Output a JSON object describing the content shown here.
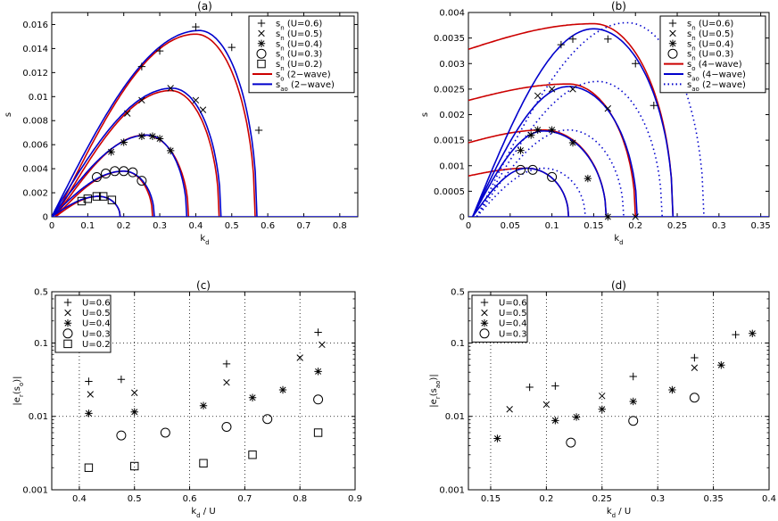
{
  "chart_data": [
    {
      "id": "a",
      "title": "(a)",
      "type": "line",
      "xlabel": "k_d",
      "ylabel": "s",
      "xlim": [
        0,
        0.85
      ],
      "ylim": [
        0,
        0.017
      ],
      "xticks": [
        0,
        0.1,
        0.2,
        0.3,
        0.4,
        0.5,
        0.6,
        0.7,
        0.8
      ],
      "xtick_labels": [
        "0",
        "0.1",
        "0.2",
        "0.3",
        "0.4",
        "0.5",
        "0.6",
        "0.7",
        "0.8"
      ],
      "yticks": [
        0,
        0.002,
        0.004,
        0.006,
        0.008,
        0.01,
        0.012,
        0.014,
        0.016
      ],
      "ytick_labels": [
        "0",
        "0.002",
        "0.004",
        "0.006",
        "0.008",
        "0.01",
        "0.012",
        "0.014",
        "0.016"
      ],
      "grid": false,
      "legend_position": "top-right",
      "legend": [
        {
          "label": "s_n (U=0.6)",
          "marker": "plus"
        },
        {
          "label": "s_n (U=0.5)",
          "marker": "x"
        },
        {
          "label": "s_n (U=0.4)",
          "marker": "star"
        },
        {
          "label": "s_n (U=0.3)",
          "marker": "circle"
        },
        {
          "label": "s_n (U=0.2)",
          "marker": "square"
        },
        {
          "label": "s_o (2−wave)",
          "line": "red"
        },
        {
          "label": "s_ao (2−wave)",
          "line": "blue"
        }
      ],
      "series": [
        {
          "name": "s_o (2−wave)",
          "color": "#cc0000",
          "style": "solid",
          "curves": [
            {
              "x0": 0.01,
              "x1": 0.565,
              "peak_x": 0.4,
              "peak_y": 0.0152
            },
            {
              "x0": 0.01,
              "x1": 0.465,
              "peak_x": 0.33,
              "peak_y": 0.0105
            },
            {
              "x0": 0.01,
              "x1": 0.38,
              "peak_x": 0.26,
              "peak_y": 0.0068
            },
            {
              "x0": 0.01,
              "x1": 0.28,
              "peak_x": 0.2,
              "peak_y": 0.0038
            },
            {
              "x0": 0.01,
              "x1": 0.19,
              "peak_x": 0.13,
              "peak_y": 0.0017
            }
          ]
        },
        {
          "name": "s_ao (2−wave)",
          "color": "#0000cc",
          "style": "solid",
          "curves": [
            {
              "x0": 0,
              "x1": 0.57,
              "peak_x": 0.41,
              "peak_y": 0.0155
            },
            {
              "x0": 0,
              "x1": 0.47,
              "peak_x": 0.335,
              "peak_y": 0.0107
            },
            {
              "x0": 0,
              "x1": 0.375,
              "peak_x": 0.265,
              "peak_y": 0.0068
            },
            {
              "x0": 0,
              "x1": 0.285,
              "peak_x": 0.2,
              "peak_y": 0.0038
            },
            {
              "x0": 0,
              "x1": 0.19,
              "peak_x": 0.13,
              "peak_y": 0.0017
            }
          ]
        }
      ],
      "points": [
        {
          "name": "s_n (U=0.6)",
          "marker": "plus",
          "x": [
            0.25,
            0.3,
            0.4,
            0.5,
            0.575
          ],
          "y": [
            0.0125,
            0.0138,
            0.0158,
            0.0141,
            0.0072
          ]
        },
        {
          "name": "s_n (U=0.5)",
          "marker": "x",
          "x": [
            0.21,
            0.25,
            0.33,
            0.4,
            0.42
          ],
          "y": [
            0.0086,
            0.0097,
            0.0107,
            0.0097,
            0.0089
          ]
        },
        {
          "name": "s_n (U=0.4)",
          "marker": "star",
          "x": [
            0.165,
            0.2,
            0.25,
            0.28,
            0.3,
            0.33
          ],
          "y": [
            0.0054,
            0.0062,
            0.0067,
            0.0067,
            0.0065,
            0.0055
          ]
        },
        {
          "name": "s_n (U=0.3)",
          "marker": "circle",
          "x": [
            0.125,
            0.15,
            0.175,
            0.2,
            0.225,
            0.25
          ],
          "y": [
            0.0033,
            0.0036,
            0.0038,
            0.0038,
            0.0037,
            0.003
          ]
        },
        {
          "name": "s_n (U=0.2)",
          "marker": "square",
          "x": [
            0.083,
            0.1,
            0.125,
            0.143,
            0.167
          ],
          "y": [
            0.0013,
            0.0015,
            0.0017,
            0.0017,
            0.0014
          ]
        }
      ]
    },
    {
      "id": "b",
      "title": "(b)",
      "type": "line",
      "xlabel": "k_d",
      "ylabel": "s",
      "xlim": [
        0,
        0.36
      ],
      "ylim": [
        0,
        0.004
      ],
      "xticks": [
        0,
        0.05,
        0.1,
        0.15,
        0.2,
        0.25,
        0.3,
        0.35
      ],
      "xtick_labels": [
        "0",
        "0.05",
        "0.1",
        "0.15",
        "0.2",
        "0.25",
        "0.3",
        "0.35"
      ],
      "yticks": [
        0,
        0.0005,
        0.001,
        0.0015,
        0.002,
        0.0025,
        0.003,
        0.0035,
        0.004
      ],
      "ytick_labels": [
        "0",
        "0.0005",
        "0.001",
        "0.0015",
        "0.002",
        "0.0025",
        "0.003",
        "0.0035",
        "0.004"
      ],
      "grid": false,
      "legend_position": "top-right",
      "legend": [
        {
          "label": "s_n (U=0.6)",
          "marker": "plus"
        },
        {
          "label": "s_n (U=0.5)",
          "marker": "x"
        },
        {
          "label": "s_n (U=0.4)",
          "marker": "star"
        },
        {
          "label": "s_n (U=0.3)",
          "marker": "circle"
        },
        {
          "label": "s_o (4−wave)",
          "line": "red"
        },
        {
          "label": "s_ao (4−wave)",
          "line": "blue"
        },
        {
          "label": "s_ao (2−wave)",
          "line": "blue-dotted"
        }
      ],
      "series": [
        {
          "name": "s_o (4−wave)",
          "color": "#cc0000",
          "style": "solid",
          "offset_curves": [
            {
              "y0": 0.00328,
              "x1": 0.245,
              "peak_x": 0.15,
              "peak_y": 0.00378
            },
            {
              "y0": 0.00228,
              "x1": 0.2,
              "peak_x": 0.12,
              "peak_y": 0.0026
            },
            {
              "y0": 0.00145,
              "x1": 0.165,
              "peak_x": 0.09,
              "peak_y": 0.0017
            },
            {
              "y0": 0.0008,
              "x1": 0.12,
              "peak_x": 0.07,
              "peak_y": 0.00095
            }
          ]
        },
        {
          "name": "s_ao (4−wave)",
          "color": "#0000cc",
          "style": "solid",
          "curves": [
            {
              "x0": 0.005,
              "x1": 0.245,
              "peak_x": 0.15,
              "peak_y": 0.00368
            },
            {
              "x0": 0.005,
              "x1": 0.202,
              "peak_x": 0.12,
              "peak_y": 0.00255
            },
            {
              "x0": 0.005,
              "x1": 0.165,
              "peak_x": 0.09,
              "peak_y": 0.00168
            },
            {
              "x0": 0.005,
              "x1": 0.12,
              "peak_x": 0.07,
              "peak_y": 0.00095
            }
          ]
        },
        {
          "name": "s_ao (2−wave)",
          "color": "#0000cc",
          "style": "dotted",
          "curves": [
            {
              "x0": 0.01,
              "x1": 0.282,
              "peak_x": 0.19,
              "peak_y": 0.0038
            },
            {
              "x0": 0.01,
              "x1": 0.232,
              "peak_x": 0.155,
              "peak_y": 0.00265
            },
            {
              "x0": 0.01,
              "x1": 0.186,
              "peak_x": 0.12,
              "peak_y": 0.0017
            },
            {
              "x0": 0.01,
              "x1": 0.14,
              "peak_x": 0.09,
              "peak_y": 0.00095
            }
          ]
        }
      ],
      "points": [
        {
          "name": "s_n (U=0.6)",
          "marker": "plus",
          "x": [
            0.111,
            0.125,
            0.167,
            0.2,
            0.222
          ],
          "y": [
            0.00337,
            0.00348,
            0.00348,
            0.003,
            0.00218
          ]
        },
        {
          "name": "s_n (U=0.5)",
          "marker": "x",
          "x": [
            0.083,
            0.1,
            0.125,
            0.167,
            0.2
          ],
          "y": [
            0.00237,
            0.0025,
            0.0025,
            0.00212,
            0.0
          ]
        },
        {
          "name": "s_n (U=0.4)",
          "marker": "star",
          "x": [
            0.0625,
            0.075,
            0.083,
            0.1,
            0.125,
            0.143,
            0.167
          ],
          "y": [
            0.0013,
            0.0016,
            0.0017,
            0.0017,
            0.00145,
            0.00075,
            0.0
          ]
        },
        {
          "name": "s_n (U=0.3)",
          "marker": "circle",
          "x": [
            0.0625,
            0.077,
            0.1
          ],
          "y": [
            0.00092,
            0.00092,
            0.00078
          ]
        }
      ]
    },
    {
      "id": "c",
      "title": "(c)",
      "type": "scatter",
      "xlabel": "k_d / U",
      "ylabel": "|e_r(s_o)|",
      "xlim": [
        0.35,
        0.9
      ],
      "ylim": [
        0.001,
        0.5
      ],
      "yscale": "log",
      "xticks": [
        0.4,
        0.5,
        0.6,
        0.7,
        0.8,
        0.9
      ],
      "xtick_labels": [
        "0.4",
        "0.5",
        "0.6",
        "0.7",
        "0.8",
        "0.9"
      ],
      "yticks": [
        0.001,
        0.01,
        0.1,
        0.5
      ],
      "ytick_labels": [
        "0.001",
        "0.01",
        "0.1",
        "0.5"
      ],
      "grid": true,
      "legend_position": "top-left",
      "legend": [
        {
          "label": "U=0.6",
          "marker": "plus"
        },
        {
          "label": "U=0.5",
          "marker": "x"
        },
        {
          "label": "U=0.4",
          "marker": "star"
        },
        {
          "label": "U=0.3",
          "marker": "circle"
        },
        {
          "label": "U=0.2",
          "marker": "square"
        }
      ],
      "points": [
        {
          "name": "U=0.6",
          "marker": "plus",
          "x": [
            0.417,
            0.476,
            0.667,
            0.833
          ],
          "y": [
            0.03,
            0.032,
            0.052,
            0.14
          ]
        },
        {
          "name": "U=0.5",
          "marker": "x",
          "x": [
            0.42,
            0.5,
            0.667,
            0.8,
            0.84
          ],
          "y": [
            0.02,
            0.021,
            0.029,
            0.063,
            0.095
          ]
        },
        {
          "name": "U=0.4",
          "marker": "star",
          "x": [
            0.417,
            0.5,
            0.625,
            0.714,
            0.769,
            0.833
          ],
          "y": [
            0.011,
            0.0115,
            0.014,
            0.018,
            0.023,
            0.041
          ]
        },
        {
          "name": "U=0.3",
          "marker": "circle",
          "x": [
            0.476,
            0.556,
            0.667,
            0.741,
            0.833
          ],
          "y": [
            0.0055,
            0.006,
            0.0072,
            0.0092,
            0.017
          ]
        },
        {
          "name": "U=0.2",
          "marker": "square",
          "x": [
            0.417,
            0.5,
            0.625,
            0.714,
            0.833
          ],
          "y": [
            0.002,
            0.0021,
            0.0023,
            0.003,
            0.006
          ]
        }
      ]
    },
    {
      "id": "d",
      "title": "(d)",
      "type": "scatter",
      "xlabel": "k_d / U",
      "ylabel": "|e_r(s_ao)|",
      "xlim": [
        0.13,
        0.4
      ],
      "ylim": [
        0.001,
        0.5
      ],
      "yscale": "log",
      "xticks": [
        0.15,
        0.2,
        0.25,
        0.3,
        0.35,
        0.4
      ],
      "xtick_labels": [
        "0.15",
        "0.2",
        "0.25",
        "0.3",
        "0.35",
        "0.4"
      ],
      "yticks": [
        0.001,
        0.01,
        0.1,
        0.5
      ],
      "ytick_labels": [
        "0.001",
        "0.01",
        "0.1",
        "0.5"
      ],
      "grid": true,
      "legend_position": "top-left",
      "legend": [
        {
          "label": "U=0.6",
          "marker": "plus"
        },
        {
          "label": "U=0.5",
          "marker": "x"
        },
        {
          "label": "U=0.4",
          "marker": "star"
        },
        {
          "label": "U=0.3",
          "marker": "circle"
        }
      ],
      "points": [
        {
          "name": "U=0.6",
          "marker": "plus",
          "x": [
            0.185,
            0.208,
            0.278,
            0.333,
            0.37
          ],
          "y": [
            0.025,
            0.026,
            0.035,
            0.063,
            0.13
          ]
        },
        {
          "name": "U=0.5",
          "marker": "x",
          "x": [
            0.167,
            0.2,
            0.25,
            0.333
          ],
          "y": [
            0.0125,
            0.0145,
            0.019,
            0.046
          ]
        },
        {
          "name": "U=0.4",
          "marker": "star",
          "x": [
            0.156,
            0.208,
            0.227,
            0.25,
            0.278,
            0.313,
            0.357,
            0.385
          ],
          "y": [
            0.005,
            0.0088,
            0.0098,
            0.0125,
            0.016,
            0.023,
            0.05,
            0.135
          ]
        },
        {
          "name": "U=0.3",
          "marker": "circle",
          "x": [
            0.222,
            0.278,
            0.333
          ],
          "y": [
            0.0044,
            0.0087,
            0.018
          ]
        }
      ]
    }
  ]
}
